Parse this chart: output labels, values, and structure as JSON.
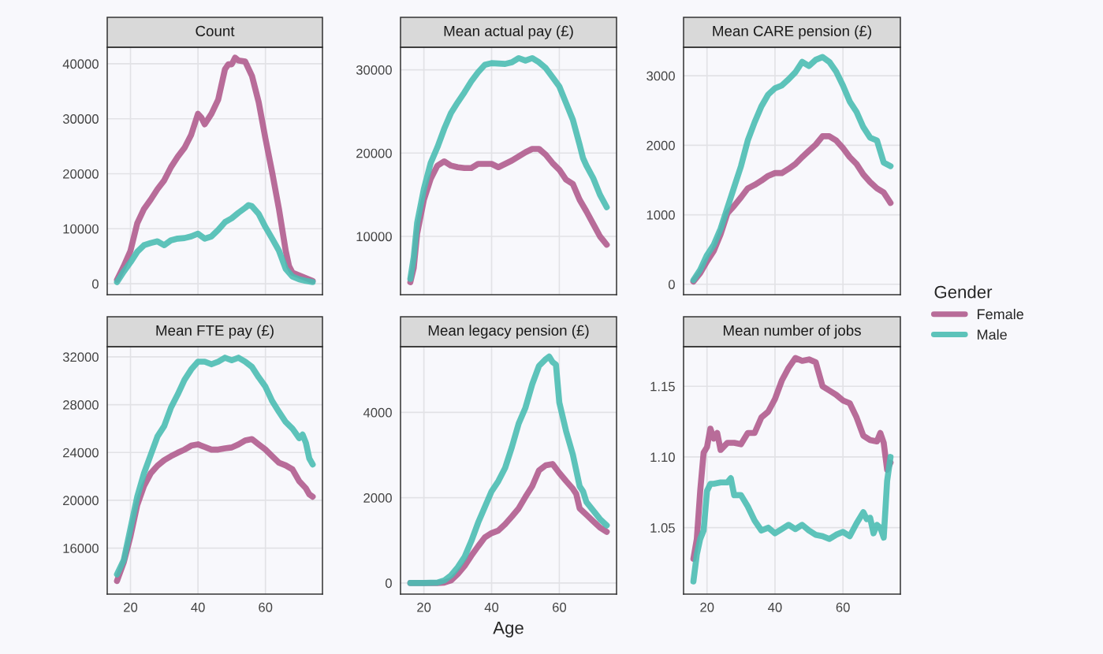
{
  "chart_data": [
    {
      "type": "line",
      "title": "Count",
      "xlim": [
        13.1,
        76.9
      ],
      "xticks": [
        20,
        40,
        60
      ],
      "ylim": [
        -2000,
        43000
      ],
      "yticks": [
        0,
        10000,
        20000,
        30000,
        40000
      ],
      "tick_labels": "y",
      "grid": true,
      "legend": "right",
      "legend_title": "Gender",
      "series": [
        {
          "name": "Female",
          "color": "#b05c8e",
          "x": [
            16,
            18,
            20,
            22,
            24,
            26,
            28,
            30,
            32,
            34,
            36,
            38,
            40,
            41,
            42,
            44,
            46,
            48,
            49,
            50,
            51,
            52,
            54,
            56,
            58,
            60,
            62,
            64,
            66,
            67,
            68,
            70,
            72,
            74
          ],
          "values": [
            700,
            3200,
            6000,
            11000,
            13600,
            15300,
            17200,
            18800,
            21200,
            23100,
            24700,
            27100,
            30900,
            30200,
            29000,
            30900,
            33500,
            39000,
            39900,
            39900,
            41100,
            40600,
            40400,
            37800,
            33000,
            26400,
            20200,
            13600,
            6000,
            3200,
            2000,
            1500,
            1000,
            500
          ]
        },
        {
          "name": "Male",
          "color": "#4bbcb3",
          "x": [
            16,
            18,
            20,
            22,
            24,
            26,
            28,
            30,
            32,
            34,
            36,
            38,
            40,
            42,
            44,
            46,
            48,
            50,
            52,
            54,
            55,
            56,
            58,
            60,
            62,
            64,
            66,
            68,
            70,
            72,
            74
          ],
          "values": [
            300,
            2200,
            3900,
            5800,
            7000,
            7400,
            7700,
            7000,
            7900,
            8200,
            8300,
            8600,
            9100,
            8200,
            8600,
            9800,
            11200,
            11900,
            12900,
            13800,
            14300,
            14100,
            12700,
            10300,
            8200,
            6000,
            2700,
            1300,
            800,
            500,
            300
          ]
        }
      ]
    },
    {
      "type": "line",
      "title": "Mean actual pay (£)",
      "xlim": [
        13.1,
        76.9
      ],
      "xticks": [
        20,
        40,
        60
      ],
      "ylim": [
        3000,
        32700
      ],
      "yticks": [
        10000,
        20000,
        30000
      ],
      "tick_labels": "y",
      "grid": true,
      "series": [
        {
          "color": "#b05c8e",
          "x": [
            16,
            17,
            18,
            20,
            22,
            24,
            26,
            28,
            30,
            32,
            34,
            36,
            38,
            40,
            42,
            44,
            46,
            48,
            50,
            52,
            54,
            56,
            58,
            60,
            62,
            64,
            66,
            68,
            70,
            72,
            73,
            74
          ],
          "values": [
            4500,
            6200,
            10300,
            14400,
            16900,
            18500,
            19000,
            18500,
            18300,
            18200,
            18200,
            18700,
            18700,
            18700,
            18300,
            18700,
            19100,
            19600,
            20100,
            20500,
            20500,
            19800,
            18800,
            18000,
            16800,
            16300,
            14400,
            13000,
            11500,
            10000,
            9500,
            9000
          ]
        },
        {
          "color": "#4bbcb3",
          "x": [
            16,
            17,
            18,
            20,
            22,
            24,
            26,
            28,
            30,
            32,
            34,
            36,
            38,
            40,
            44,
            46,
            48,
            50,
            52,
            54,
            56,
            58,
            60,
            62,
            64,
            66,
            67,
            68,
            70,
            72,
            74
          ],
          "values": [
            4900,
            7500,
            11600,
            15700,
            18800,
            20700,
            22900,
            24800,
            26100,
            27300,
            28600,
            29700,
            30600,
            30800,
            30700,
            30900,
            31400,
            31100,
            31400,
            30900,
            30200,
            29100,
            28000,
            26000,
            24000,
            21000,
            19400,
            18500,
            17000,
            15000,
            13500
          ]
        }
      ]
    },
    {
      "type": "line",
      "title": "Mean CARE pension (£)",
      "xlim": [
        13.1,
        76.9
      ],
      "xticks": [
        20,
        40,
        60
      ],
      "ylim": [
        -150,
        3410
      ],
      "yticks": [
        0,
        1000,
        2000,
        3000
      ],
      "tick_labels": "y",
      "grid": true,
      "series": [
        {
          "color": "#b05c8e",
          "x": [
            16,
            18,
            20,
            22,
            24,
            26,
            28,
            30,
            32,
            34,
            36,
            38,
            40,
            42,
            44,
            46,
            48,
            50,
            52,
            54,
            56,
            58,
            60,
            62,
            64,
            66,
            68,
            70,
            72,
            74
          ],
          "values": [
            40,
            160,
            330,
            480,
            720,
            1020,
            1130,
            1250,
            1380,
            1430,
            1490,
            1560,
            1600,
            1600,
            1660,
            1730,
            1830,
            1920,
            2010,
            2130,
            2130,
            2070,
            1960,
            1830,
            1730,
            1580,
            1470,
            1380,
            1320,
            1170
          ]
        },
        {
          "color": "#4bbcb3",
          "x": [
            16,
            18,
            20,
            22,
            24,
            26,
            28,
            30,
            32,
            34,
            36,
            38,
            40,
            42,
            44,
            46,
            48,
            50,
            52,
            54,
            56,
            58,
            60,
            62,
            64,
            66,
            68,
            70,
            72,
            74
          ],
          "values": [
            60,
            210,
            420,
            570,
            800,
            1100,
            1400,
            1700,
            2070,
            2330,
            2560,
            2730,
            2820,
            2860,
            2950,
            3050,
            3200,
            3140,
            3230,
            3270,
            3200,
            3060,
            2860,
            2630,
            2480,
            2260,
            2110,
            2070,
            1750,
            1700
          ]
        }
      ]
    },
    {
      "type": "line",
      "title": "Mean FTE pay (£)",
      "xlim": [
        13.1,
        76.9
      ],
      "xticks": [
        20,
        40,
        60
      ],
      "ylim": [
        12150,
        32850
      ],
      "yticks": [
        16000,
        20000,
        24000,
        28000,
        32000
      ],
      "grid": true,
      "series": [
        {
          "color": "#b05c8e",
          "x": [
            16,
            18,
            20,
            22,
            24,
            26,
            28,
            30,
            32,
            34,
            36,
            38,
            40,
            42,
            44,
            46,
            48,
            50,
            52,
            54,
            56,
            58,
            60,
            62,
            64,
            66,
            68,
            70,
            72,
            73,
            74
          ],
          "values": [
            13250,
            14800,
            17000,
            19600,
            21200,
            22260,
            22900,
            23360,
            23690,
            23980,
            24240,
            24570,
            24680,
            24460,
            24240,
            24240,
            24350,
            24420,
            24680,
            25010,
            25120,
            24680,
            24240,
            23690,
            23140,
            22920,
            22590,
            21600,
            21000,
            20500,
            20300
          ]
        },
        {
          "color": "#4bbcb3",
          "x": [
            16,
            18,
            20,
            22,
            24,
            26,
            28,
            30,
            32,
            34,
            36,
            38,
            40,
            42,
            44,
            46,
            48,
            50,
            52,
            54,
            56,
            58,
            60,
            62,
            64,
            66,
            68,
            70,
            71,
            72,
            73,
            74
          ],
          "values": [
            13800,
            15000,
            17650,
            20300,
            22260,
            23800,
            25340,
            26220,
            27760,
            28860,
            30070,
            30950,
            31600,
            31600,
            31380,
            31600,
            31930,
            31710,
            31930,
            31600,
            31160,
            30290,
            29500,
            28300,
            27400,
            26550,
            26000,
            25200,
            25500,
            24800,
            23500,
            23000
          ]
        }
      ]
    },
    {
      "type": "line",
      "title": "Mean legacy pension (£)",
      "xlabel": "Age",
      "xlim": [
        13.1,
        76.9
      ],
      "xticks": [
        20,
        40,
        60
      ],
      "ylim": [
        -260,
        5540
      ],
      "yticks": [
        0,
        2000,
        4000
      ],
      "grid": true,
      "series": [
        {
          "color": "#b05c8e",
          "x": [
            16,
            20,
            24,
            26,
            28,
            30,
            32,
            34,
            36,
            38,
            40,
            42,
            44,
            46,
            48,
            50,
            52,
            54,
            56,
            58,
            60,
            62,
            64,
            65,
            66,
            68,
            70,
            72,
            74
          ],
          "values": [
            0,
            0,
            0,
            10,
            60,
            210,
            400,
            640,
            860,
            1070,
            1170,
            1230,
            1380,
            1560,
            1750,
            2020,
            2270,
            2640,
            2760,
            2790,
            2580,
            2390,
            2210,
            2090,
            1750,
            1600,
            1450,
            1300,
            1200
          ]
        },
        {
          "color": "#4bbcb3",
          "x": [
            16,
            20,
            24,
            26,
            28,
            30,
            32,
            34,
            36,
            38,
            40,
            42,
            44,
            46,
            48,
            50,
            52,
            54,
            56,
            57,
            58,
            59,
            60,
            62,
            64,
            66,
            67,
            68,
            70,
            72,
            74
          ],
          "values": [
            0,
            0,
            10,
            60,
            180,
            370,
            610,
            980,
            1410,
            1780,
            2150,
            2390,
            2700,
            3190,
            3740,
            4110,
            4660,
            5090,
            5250,
            5310,
            5180,
            5120,
            4230,
            3560,
            3010,
            2270,
            2150,
            1900,
            1700,
            1500,
            1350
          ]
        }
      ]
    },
    {
      "type": "line",
      "title": "Mean number of jobs",
      "xlim": [
        13.1,
        76.9
      ],
      "xticks": [
        20,
        40,
        60
      ],
      "ylim": [
        1.003,
        1.178
      ],
      "yticks": [
        {
          "value": 1.05,
          "label": "1.05"
        },
        {
          "value": 1.1,
          "label": "1.10"
        },
        {
          "value": 1.15,
          "label": "1.15"
        }
      ],
      "grid": true,
      "series": [
        {
          "color": "#b05c8e",
          "x": [
            16,
            17,
            18,
            19,
            20,
            21,
            22,
            23,
            24,
            26,
            28,
            30,
            32,
            34,
            36,
            38,
            40,
            42,
            44,
            46,
            48,
            50,
            52,
            54,
            56,
            58,
            60,
            62,
            64,
            66,
            68,
            70,
            71,
            72,
            73,
            74
          ],
          "values": [
            1.028,
            1.042,
            1.076,
            1.103,
            1.107,
            1.12,
            1.113,
            1.117,
            1.105,
            1.11,
            1.11,
            1.109,
            1.117,
            1.117,
            1.128,
            1.132,
            1.141,
            1.154,
            1.163,
            1.17,
            1.168,
            1.169,
            1.167,
            1.15,
            1.147,
            1.144,
            1.14,
            1.138,
            1.128,
            1.115,
            1.112,
            1.111,
            1.117,
            1.11,
            1.091,
            1.096
          ]
        },
        {
          "color": "#4bbcb3",
          "x": [
            16,
            17,
            18,
            19,
            20,
            21,
            22,
            24,
            26,
            27,
            28,
            30,
            32,
            34,
            36,
            38,
            40,
            42,
            44,
            46,
            48,
            50,
            52,
            54,
            56,
            58,
            60,
            62,
            64,
            66,
            67,
            68,
            69,
            70,
            71,
            72,
            73,
            74
          ],
          "values": [
            1.012,
            1.031,
            1.042,
            1.048,
            1.076,
            1.081,
            1.081,
            1.082,
            1.082,
            1.085,
            1.073,
            1.073,
            1.065,
            1.055,
            1.048,
            1.05,
            1.046,
            1.049,
            1.052,
            1.049,
            1.052,
            1.048,
            1.045,
            1.044,
            1.042,
            1.045,
            1.047,
            1.044,
            1.053,
            1.061,
            1.056,
            1.057,
            1.046,
            1.052,
            1.05,
            1.043,
            1.083,
            1.1
          ]
        }
      ]
    }
  ]
}
